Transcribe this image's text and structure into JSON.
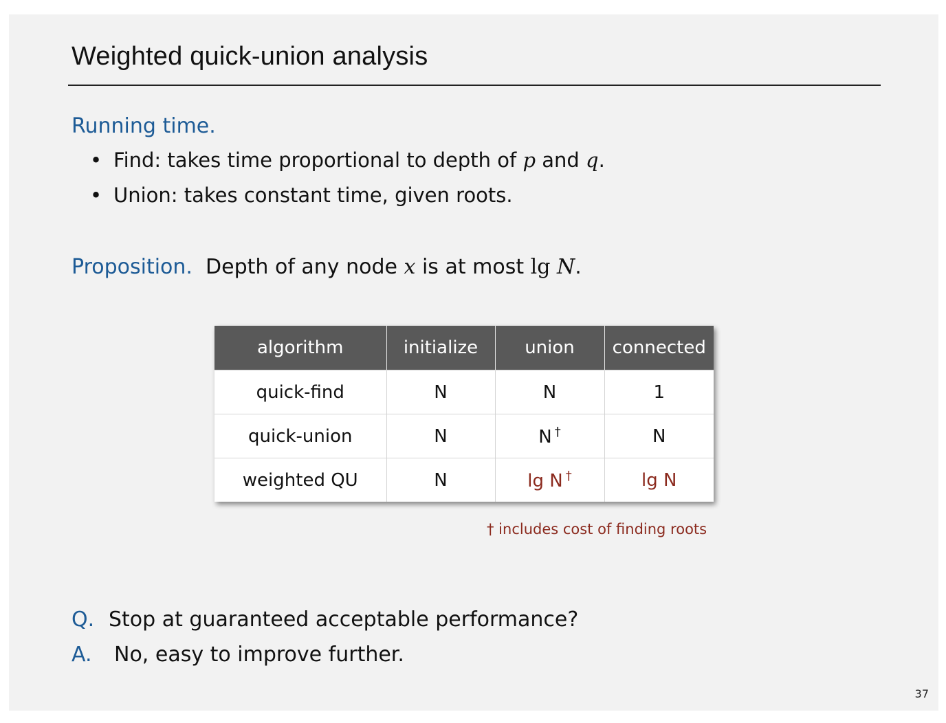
{
  "title": "Weighted quick-union analysis",
  "running_time": {
    "heading": "Running time.",
    "bullets": [
      {
        "pre": "Find:  takes time proportional to depth of ",
        "var1": "p",
        "mid": " and ",
        "var2": "q",
        "post": "."
      },
      {
        "text": "Union:  takes constant time, given roots."
      }
    ]
  },
  "proposition": {
    "label": "Proposition.",
    "pre": "Depth of any node ",
    "var": "x",
    "mid": " is at most ",
    "lg": "lg",
    "N": "N",
    "post": "."
  },
  "table": {
    "headers": [
      "algorithm",
      "initialize",
      "union",
      "connected"
    ],
    "rows": [
      {
        "algorithm": "quick-find",
        "initialize": "N",
        "union": "N",
        "union_dagger": "",
        "connected": "1"
      },
      {
        "algorithm": "quick-union",
        "initialize": "N",
        "union": "N",
        "union_dagger": "†",
        "connected": "N"
      },
      {
        "algorithm": "weighted QU",
        "initialize": "N",
        "union": "lg N",
        "union_dagger": "†",
        "connected": "lg N"
      }
    ],
    "highlight_color": "#8b2a1e",
    "header_bg": "#595959"
  },
  "footnote": "† includes cost of finding roots",
  "qa": {
    "q_label": "Q.",
    "q_text": "Stop at guaranteed acceptable performance?",
    "a_label": "A.",
    "a_text": "No, easy to improve further."
  },
  "page_number": "37",
  "colors": {
    "accent": "#1d5b96",
    "background": "#f2f2f2"
  }
}
